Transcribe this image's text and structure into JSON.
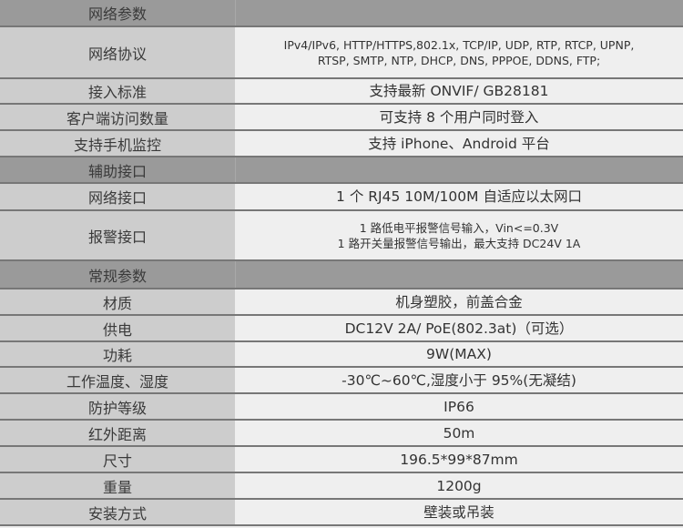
{
  "rows": [
    {
      "type": "section",
      "label": "网络参数"
    },
    {
      "label": "网络协议",
      "values": [
        "IPv4/IPv6, HTTP/HTTPS,802.1x, TCP/IP, UDP, RTP, RTCP, UPNP,",
        "RTSP, SMTP, NTP, DHCP, DNS, PPPOE, DDNS, FTP;"
      ],
      "small": true
    },
    {
      "label": "接入标准",
      "values": [
        "支持最新 ONVIF/ GB28181"
      ]
    },
    {
      "label": "客户端访问数量",
      "values": [
        "可支持 8 个用户同时登入"
      ]
    },
    {
      "label": "支持手机监控",
      "values": [
        "支持 iPhone、Android 平台"
      ]
    },
    {
      "type": "section",
      "label": "辅助接口"
    },
    {
      "label": "网络接口",
      "values": [
        "1 个 RJ45 10M/100M 自适应以太网口"
      ]
    },
    {
      "label": "报警接口",
      "values": [
        "1 路低电平报警信号输入，Vin<=0.3V",
        "1 路开关量报警信号输出，最大支持 DC24V 1A"
      ],
      "small": true
    },
    {
      "type": "section",
      "label": "常规参数"
    },
    {
      "label": "材质",
      "values": [
        "机身塑胶，前盖合金"
      ]
    },
    {
      "label": "供电",
      "values": [
        "DC12V 2A/ PoE(802.3at)（可选）"
      ]
    },
    {
      "label": "功耗",
      "values": [
        "9W(MAX)"
      ]
    },
    {
      "label": "工作温度、湿度",
      "values": [
        "-30℃~60℃,湿度小于 95%(无凝结)"
      ]
    },
    {
      "label": "防护等级",
      "values": [
        "IP66"
      ]
    },
    {
      "label": "红外距离",
      "values": [
        "50m"
      ]
    },
    {
      "label": "尺寸",
      "values": [
        "196.5*99*87mm"
      ]
    },
    {
      "label": "重量",
      "values": [
        "1200g"
      ]
    },
    {
      "label": "安装方式",
      "values": [
        "壁装或吊装"
      ]
    }
  ]
}
